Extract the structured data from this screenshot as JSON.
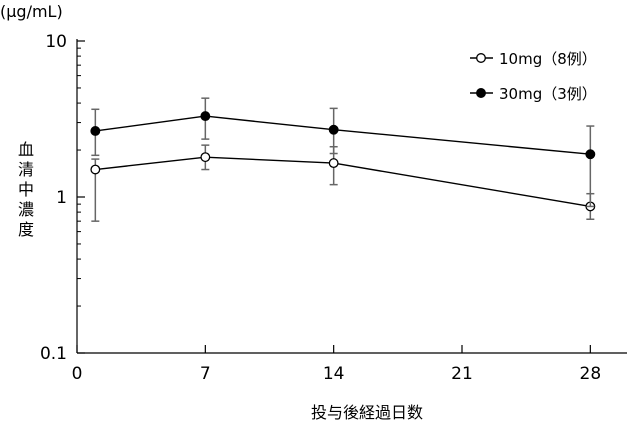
{
  "chart_data": {
    "type": "line",
    "xlabel": "投与後経過日数",
    "ylabel": "血清中濃度",
    "y_unit": "(μg/mL)",
    "y_scale": "log",
    "xlim": [
      0,
      30
    ],
    "ylim": [
      0.1,
      10
    ],
    "x_ticks": [
      {
        "value": 0,
        "label": "0"
      },
      {
        "value": 7,
        "label": "7"
      },
      {
        "value": 14,
        "label": "14"
      },
      {
        "value": 21,
        "label": "21"
      },
      {
        "value": 28,
        "label": "28"
      }
    ],
    "y_ticks": [
      {
        "value": 0.1,
        "label": "0.1"
      },
      {
        "value": 1,
        "label": "1"
      },
      {
        "value": 10,
        "label": "10"
      }
    ],
    "grid": false,
    "legend_position": "top-right",
    "series": [
      {
        "name": "10mg（8例）",
        "marker": "open-circle",
        "points": [
          {
            "x": 1,
            "y": 1.5,
            "err_low": 0.7,
            "err_high": 1.75
          },
          {
            "x": 7,
            "y": 1.8,
            "err_low": 1.5,
            "err_high": 2.15
          },
          {
            "x": 14,
            "y": 1.65,
            "err_low": 1.2,
            "err_high": 2.1
          },
          {
            "x": 28,
            "y": 0.87,
            "err_low": 0.72,
            "err_high": 1.05
          }
        ]
      },
      {
        "name": "30mg（3例）",
        "marker": "filled-circle",
        "points": [
          {
            "x": 1,
            "y": 2.65,
            "err_low": 1.85,
            "err_high": 3.65
          },
          {
            "x": 7,
            "y": 3.3,
            "err_low": 2.35,
            "err_high": 4.3
          },
          {
            "x": 14,
            "y": 2.7,
            "err_low": 1.9,
            "err_high": 3.7
          },
          {
            "x": 28,
            "y": 1.88,
            "err_low": 0.87,
            "err_high": 2.85
          }
        ]
      }
    ]
  }
}
